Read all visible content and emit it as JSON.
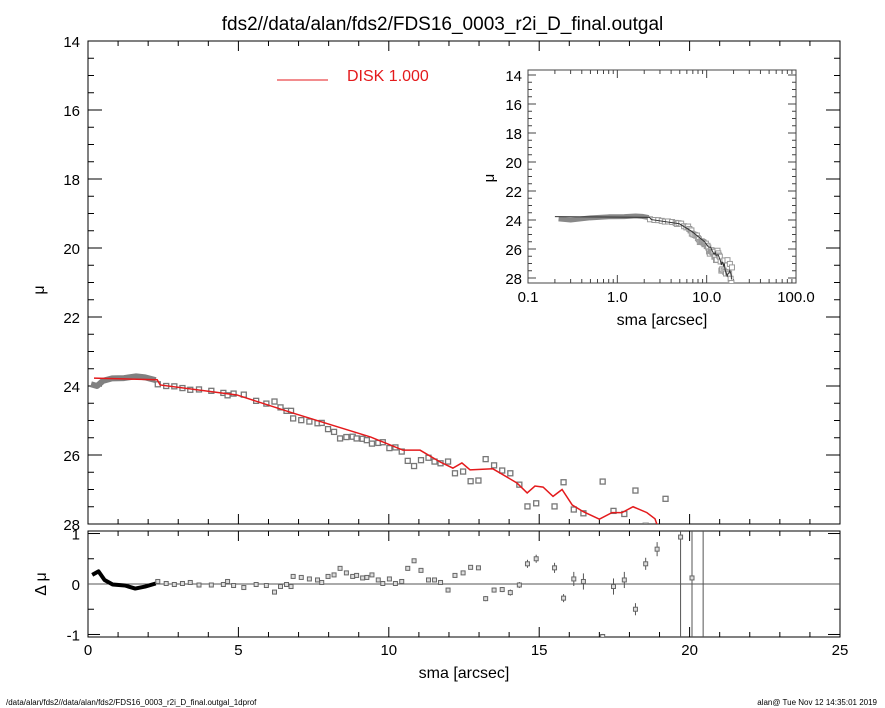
{
  "title": "fds2//data/alan/fds2/FDS16_0003_r2i_D_final.outgal",
  "footer": {
    "left": "/data/alan/fds2//data/alan/fds2/FDS16_0003_r2i_D_final.outgal_1dprof",
    "right": "alan@  Tue Nov 12 14:35:01 2019"
  },
  "colors": {
    "model": "#e41a1c",
    "points": "#808080",
    "inner": "#000000",
    "axes": "#000000"
  },
  "chart_data": [
    {
      "type": "scatter",
      "panel": "main",
      "xlabel": "sma [arcsec]",
      "ylabel": "μ",
      "xlim": [
        0,
        25
      ],
      "ylim": [
        28,
        14
      ],
      "y_reversed": true,
      "xticks": [
        0,
        5,
        10,
        15,
        20,
        25
      ],
      "yticks": [
        14,
        16,
        18,
        20,
        22,
        24,
        26,
        28
      ],
      "legend": {
        "label": "DISK  1.000",
        "placement": "top-center"
      },
      "model": {
        "name": "DISK  1.000",
        "points": [
          [
            0.2,
            23.77
          ],
          [
            2.3,
            23.82
          ],
          [
            2.4,
            23.97
          ],
          [
            4.95,
            24.26
          ],
          [
            6.8,
            24.78
          ],
          [
            9.4,
            25.48
          ],
          [
            10.47,
            25.86
          ],
          [
            11.04,
            25.86
          ],
          [
            11.7,
            26.2
          ],
          [
            12.13,
            26.38
          ],
          [
            12.43,
            26.23
          ],
          [
            12.7,
            26.43
          ],
          [
            13.46,
            26.4
          ],
          [
            14.26,
            26.81
          ],
          [
            14.6,
            27.1
          ],
          [
            14.86,
            26.9
          ],
          [
            15.13,
            26.93
          ],
          [
            15.46,
            27.2
          ],
          [
            15.76,
            27.0
          ],
          [
            16.1,
            27.45
          ],
          [
            16.46,
            27.64
          ],
          [
            17.0,
            27.86
          ],
          [
            17.42,
            27.67
          ],
          [
            17.75,
            27.67
          ],
          [
            18.12,
            27.5
          ],
          [
            18.58,
            27.67
          ],
          [
            18.85,
            27.85
          ],
          [
            18.95,
            28.1
          ]
        ]
      },
      "inner_profile": [
        [
          0.1,
          23.95
        ],
        [
          0.3,
          24.0
        ],
        [
          0.5,
          23.85
        ],
        [
          0.8,
          23.78
        ],
        [
          1.2,
          23.77
        ],
        [
          1.6,
          23.72
        ],
        [
          1.9,
          23.75
        ],
        [
          2.25,
          23.83
        ]
      ],
      "profile": [
        [
          2.32,
          23.95
        ],
        [
          2.6,
          24.0
        ],
        [
          2.87,
          24.01
        ],
        [
          3.14,
          24.06
        ],
        [
          3.4,
          24.11
        ],
        [
          3.69,
          24.1
        ],
        [
          4.1,
          24.14
        ],
        [
          4.5,
          24.2
        ],
        [
          4.64,
          24.27
        ],
        [
          4.84,
          24.22
        ],
        [
          5.18,
          24.25
        ],
        [
          5.59,
          24.43
        ],
        [
          5.93,
          24.51
        ],
        [
          6.2,
          24.45
        ],
        [
          6.4,
          24.62
        ],
        [
          6.6,
          24.72
        ],
        [
          6.75,
          24.72
        ],
        [
          6.82,
          24.94
        ],
        [
          7.09,
          24.99
        ],
        [
          7.36,
          25.03
        ],
        [
          7.63,
          25.08
        ],
        [
          7.77,
          25.07
        ],
        [
          7.98,
          25.25
        ],
        [
          8.18,
          25.33
        ],
        [
          8.38,
          25.52
        ],
        [
          8.59,
          25.48
        ],
        [
          8.8,
          25.47
        ],
        [
          8.93,
          25.52
        ],
        [
          9.13,
          25.53
        ],
        [
          9.27,
          25.57
        ],
        [
          9.44,
          25.67
        ],
        [
          9.65,
          25.65
        ],
        [
          9.8,
          25.63
        ],
        [
          10.02,
          25.8
        ],
        [
          10.22,
          25.78
        ],
        [
          10.43,
          25.9
        ],
        [
          10.63,
          26.17
        ],
        [
          10.84,
          26.32
        ],
        [
          11.07,
          26.15
        ],
        [
          11.32,
          26.08
        ],
        [
          11.52,
          26.19
        ],
        [
          11.72,
          26.24
        ],
        [
          11.97,
          26.19
        ],
        [
          12.2,
          26.53
        ],
        [
          12.47,
          26.48
        ],
        [
          12.72,
          26.76
        ],
        [
          12.98,
          26.74
        ],
        [
          13.22,
          26.12
        ],
        [
          13.5,
          26.3
        ],
        [
          13.77,
          26.45
        ],
        [
          14.04,
          26.53
        ],
        [
          14.34,
          26.86
        ],
        [
          14.61,
          27.49
        ],
        [
          14.9,
          27.4
        ],
        [
          15.51,
          27.49
        ],
        [
          15.81,
          26.79
        ],
        [
          16.15,
          27.58
        ],
        [
          16.47,
          27.69
        ],
        [
          17.11,
          26.77
        ],
        [
          17.47,
          27.62
        ],
        [
          17.83,
          27.71
        ],
        [
          18.2,
          27.03
        ],
        [
          18.54,
          28.05
        ],
        [
          18.92,
          28.6
        ],
        [
          19.2,
          27.27
        ]
      ]
    },
    {
      "type": "scatter",
      "panel": "residual",
      "xlabel": "sma [arcsec]",
      "ylabel": "Δ μ",
      "xlim": [
        0,
        25
      ],
      "ylim": [
        -1.05,
        1.05
      ],
      "yticks": [
        -1,
        0,
        1
      ],
      "reference_line": 0,
      "inner_residual": [
        [
          0.14,
          0.18
        ],
        [
          0.35,
          0.25
        ],
        [
          0.55,
          0.08
        ],
        [
          0.82,
          -0.01
        ],
        [
          1.23,
          -0.03
        ],
        [
          1.57,
          -0.09
        ],
        [
          1.9,
          -0.05
        ],
        [
          2.25,
          0.01
        ]
      ],
      "residuals": [
        [
          2.32,
          0.05,
          0.01
        ],
        [
          2.6,
          0.01,
          0.01
        ],
        [
          2.87,
          -0.01,
          0.01
        ],
        [
          3.14,
          0.01,
          0.01
        ],
        [
          3.4,
          0.03,
          0.01
        ],
        [
          3.69,
          -0.02,
          0.01
        ],
        [
          4.1,
          -0.02,
          0.01
        ],
        [
          4.5,
          -0.01,
          0.01
        ],
        [
          4.64,
          0.05,
          0.01
        ],
        [
          4.84,
          -0.03,
          0.01
        ],
        [
          5.18,
          -0.07,
          0.01
        ],
        [
          5.59,
          -0.01,
          0.01
        ],
        [
          5.93,
          -0.03,
          0.01
        ],
        [
          6.2,
          -0.16,
          0.01
        ],
        [
          6.4,
          -0.05,
          0.01
        ],
        [
          6.6,
          -0.01,
          0.01
        ],
        [
          6.75,
          -0.05,
          0.01
        ],
        [
          6.82,
          0.15,
          0.01
        ],
        [
          7.09,
          0.13,
          0.01
        ],
        [
          7.36,
          0.1,
          0.01
        ],
        [
          7.63,
          0.08,
          0.01
        ],
        [
          7.77,
          0.03,
          0.01
        ],
        [
          7.98,
          0.15,
          0.02
        ],
        [
          8.18,
          0.18,
          0.02
        ],
        [
          8.38,
          0.31,
          0.02
        ],
        [
          8.59,
          0.22,
          0.02
        ],
        [
          8.8,
          0.15,
          0.02
        ],
        [
          8.93,
          0.17,
          0.02
        ],
        [
          9.13,
          0.12,
          0.02
        ],
        [
          9.27,
          0.13,
          0.02
        ],
        [
          9.44,
          0.18,
          0.02
        ],
        [
          9.65,
          0.08,
          0.02
        ],
        [
          9.8,
          0.01,
          0.02
        ],
        [
          10.02,
          0.1,
          0.02
        ],
        [
          10.22,
          0.01,
          0.02
        ],
        [
          10.43,
          0.05,
          0.02
        ],
        [
          10.63,
          0.31,
          0.03
        ],
        [
          10.84,
          0.46,
          0.03
        ],
        [
          11.07,
          0.27,
          0.03
        ],
        [
          11.32,
          0.08,
          0.03
        ],
        [
          11.52,
          0.08,
          0.03
        ],
        [
          11.72,
          0.03,
          0.03
        ],
        [
          11.97,
          -0.12,
          0.04
        ],
        [
          12.2,
          0.17,
          0.04
        ],
        [
          12.47,
          0.22,
          0.04
        ],
        [
          12.72,
          0.33,
          0.04
        ],
        [
          12.98,
          0.32,
          0.04
        ],
        [
          13.22,
          -0.29,
          0.05
        ],
        [
          13.5,
          -0.12,
          0.05
        ],
        [
          13.77,
          -0.11,
          0.05
        ],
        [
          14.04,
          -0.17,
          0.06
        ],
        [
          14.34,
          -0.02,
          0.06
        ],
        [
          14.61,
          0.4,
          0.08
        ],
        [
          14.9,
          0.5,
          0.08
        ],
        [
          15.51,
          0.32,
          0.1
        ],
        [
          15.81,
          -0.28,
          0.08
        ],
        [
          16.15,
          0.1,
          0.14
        ],
        [
          16.47,
          0.05,
          0.16
        ],
        [
          17.11,
          -1.04,
          0.05
        ],
        [
          17.47,
          -0.05,
          0.16
        ],
        [
          17.83,
          0.08,
          0.16
        ],
        [
          18.2,
          -0.5,
          0.12
        ],
        [
          18.54,
          0.4,
          0.12
        ],
        [
          18.92,
          0.69,
          0.14
        ],
        [
          19.7,
          0.93,
          5
        ],
        [
          20.08,
          0.12,
          5
        ],
        [
          20.45,
          1.5,
          5
        ]
      ]
    },
    {
      "type": "scatter",
      "panel": "inset",
      "xlabel": "sma [arcsec]",
      "ylabel": "μ",
      "xscale": "log",
      "xlim": [
        0.1,
        100
      ],
      "ylim": [
        28,
        14
      ],
      "xticks": [
        0.1,
        1.0,
        10.0,
        100.0
      ],
      "xtick_labels": [
        "0.1",
        "1.0",
        "10.0",
        "100.0"
      ],
      "yticks": [
        14,
        16,
        18,
        20,
        22,
        24,
        26,
        28
      ],
      "note": "same profile and model as main panel, log x-axis"
    }
  ]
}
